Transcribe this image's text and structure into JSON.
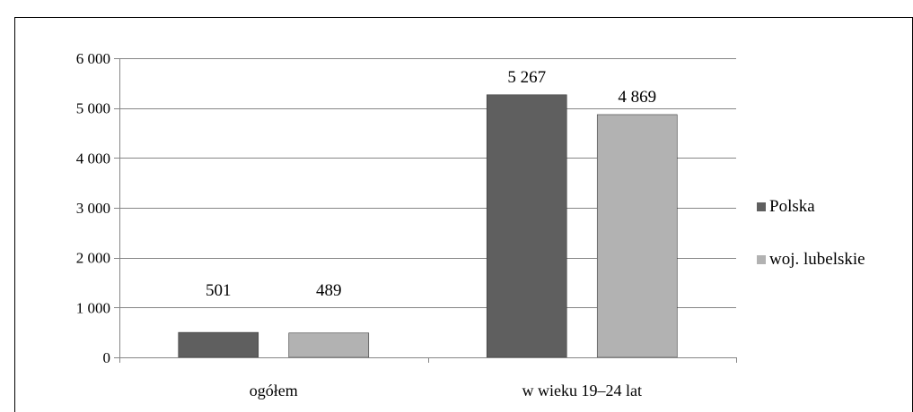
{
  "chart_data": {
    "type": "bar",
    "categories": [
      "ogółem",
      "w wieku 19–24 lat"
    ],
    "series": [
      {
        "name": "Polska",
        "color": "#5f5f5f",
        "values": [
          501,
          5267
        ],
        "labels": [
          "501",
          "5 267"
        ]
      },
      {
        "name": "woj. lubelskie",
        "color": "#b2b2b2",
        "values": [
          489,
          4869
        ],
        "labels": [
          "489",
          "4 869"
        ]
      }
    ],
    "ylim": [
      0,
      6000
    ],
    "y_ticks": [
      0,
      1000,
      2000,
      3000,
      4000,
      5000,
      6000
    ],
    "y_tick_labels": [
      "0",
      "1 000",
      "2 000",
      "3 000",
      "4 000",
      "5 000",
      "6 000"
    ],
    "grid": true,
    "legend_position": "right"
  }
}
